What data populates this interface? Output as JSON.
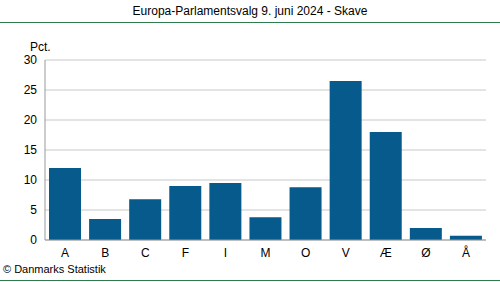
{
  "chart_data": {
    "type": "bar",
    "title": "Europa-Parlamentsvalg 9. juni 2024 - Skave",
    "y_label": "Pct.",
    "footer": "© Danmarks Statistik",
    "categories": [
      "A",
      "B",
      "C",
      "F",
      "I",
      "M",
      "O",
      "V",
      "Æ",
      "Ø",
      "Å"
    ],
    "values": [
      12.0,
      3.5,
      6.8,
      9.0,
      9.5,
      3.8,
      8.8,
      26.5,
      18.0,
      2.0,
      0.7
    ],
    "color": "#065a8c",
    "ylim": [
      0,
      30
    ],
    "yticks": [
      0,
      5,
      10,
      15,
      20,
      25,
      30
    ],
    "grid": true
  }
}
